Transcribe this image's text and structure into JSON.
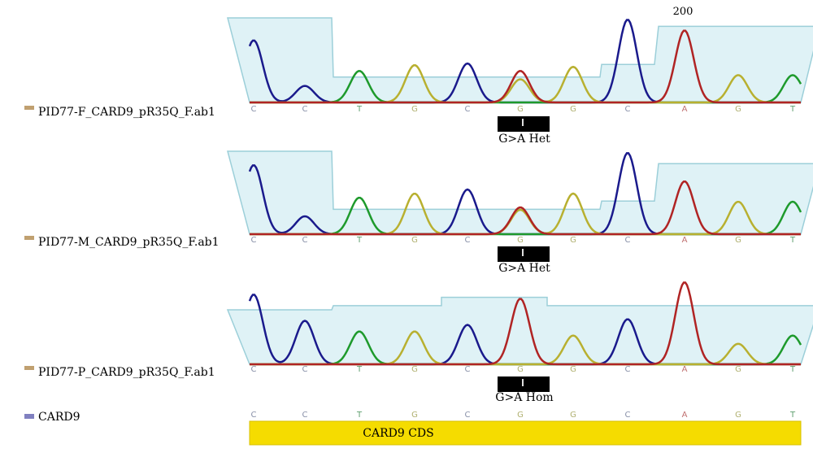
{
  "position_marker": "200",
  "tracks": [
    {
      "label": "PID77-F_CARD9_pR35Q_F.ab1",
      "bases": [
        "C",
        "C",
        "T",
        "G",
        "C",
        "G",
        "G",
        "C",
        "A",
        "G",
        "T"
      ],
      "annotation": "G>A Het"
    },
    {
      "label": "PID77-M_CARD9_pR35Q_F.ab1",
      "bases": [
        "C",
        "C",
        "T",
        "G",
        "C",
        "G",
        "G",
        "C",
        "A",
        "G",
        "T"
      ],
      "annotation": "G>A Het"
    },
    {
      "label": "PID77-P_CARD9_pR35Q_F.ab1",
      "bases": [
        "C",
        "C",
        "T",
        "G",
        "C",
        "G",
        "G",
        "C",
        "A",
        "G",
        "T"
      ],
      "annotation": "G>A Hom"
    }
  ],
  "reference": {
    "label": "CARD9",
    "bases": [
      "C",
      "C",
      "T",
      "G",
      "C",
      "G",
      "G",
      "C",
      "A",
      "G",
      "T"
    ],
    "feature": "CARD9 CDS"
  }
}
